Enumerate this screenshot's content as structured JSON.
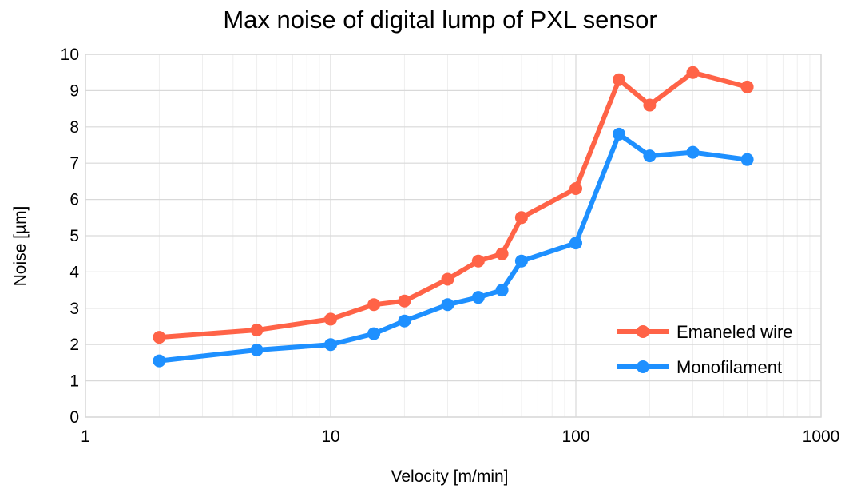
{
  "chart_data": {
    "type": "line",
    "title": "Max noise of digital lump of PXL sensor",
    "xlabel": "Velocity [m/min]",
    "ylabel": "Noise [µm]",
    "xscale": "log",
    "xlim": [
      1,
      1000
    ],
    "ylim": [
      0,
      10
    ],
    "xticks": [
      "1",
      "10",
      "100",
      "1000"
    ],
    "yticks": [
      "0",
      "1",
      "2",
      "3",
      "4",
      "5",
      "6",
      "7",
      "8",
      "9",
      "10"
    ],
    "grid": true,
    "legend_position": "bottom-right",
    "x": [
      2,
      5,
      10,
      15,
      20,
      30,
      40,
      50,
      60,
      100,
      150,
      200,
      300,
      500
    ],
    "series": [
      {
        "name": "Emaneled wire",
        "color": "#FF6347",
        "values": [
          2.2,
          2.4,
          2.7,
          3.1,
          3.2,
          3.8,
          4.3,
          4.5,
          5.5,
          6.3,
          9.3,
          8.6,
          9.5,
          9.1
        ]
      },
      {
        "name": "Monofilament",
        "color": "#1E90FF",
        "values": [
          1.55,
          1.85,
          2.0,
          2.3,
          2.65,
          3.1,
          3.3,
          3.5,
          4.3,
          4.8,
          7.8,
          7.2,
          7.3,
          7.1
        ]
      }
    ]
  }
}
